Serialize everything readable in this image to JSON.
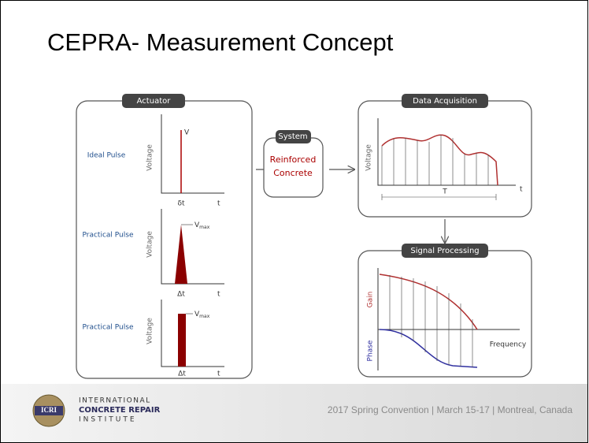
{
  "title": "CEPRA- Measurement Concept",
  "actuator": {
    "label": "Actuator",
    "pulses": [
      {
        "name": "Ideal Pulse",
        "y_label": "Voltage",
        "peak_label": "V",
        "width_label": "δt",
        "x_label": "t"
      },
      {
        "name": "Practical Pulse",
        "y_label": "Voltage",
        "peak_label": {
          "main": "V",
          "sub": "max"
        },
        "width_label": "Δt",
        "x_label": "t"
      },
      {
        "name": "Practical Pulse",
        "y_label": "Voltage",
        "peak_label": {
          "main": "V",
          "sub": "max"
        },
        "width_label": "Δt",
        "x_label": "t"
      }
    ]
  },
  "system": {
    "label": "System",
    "text_lines": [
      "Reinforced",
      "Concrete"
    ]
  },
  "data_acquisition": {
    "label": "Data Acquisition",
    "y_label": "Voltage",
    "period_label": "T",
    "x_label": "t"
  },
  "signal_processing": {
    "label": "Signal Processing",
    "gain_label": "Gain",
    "phase_label": "Phase",
    "x_label": "Frequency"
  },
  "footer": {
    "logo": "ICRI",
    "org_lines": [
      "INTERNATIONAL",
      "CONCRETE REPAIR",
      "INSTITUTE"
    ],
    "event": "2017 Spring Convention | March 15-17 | Montreal, Canada"
  }
}
